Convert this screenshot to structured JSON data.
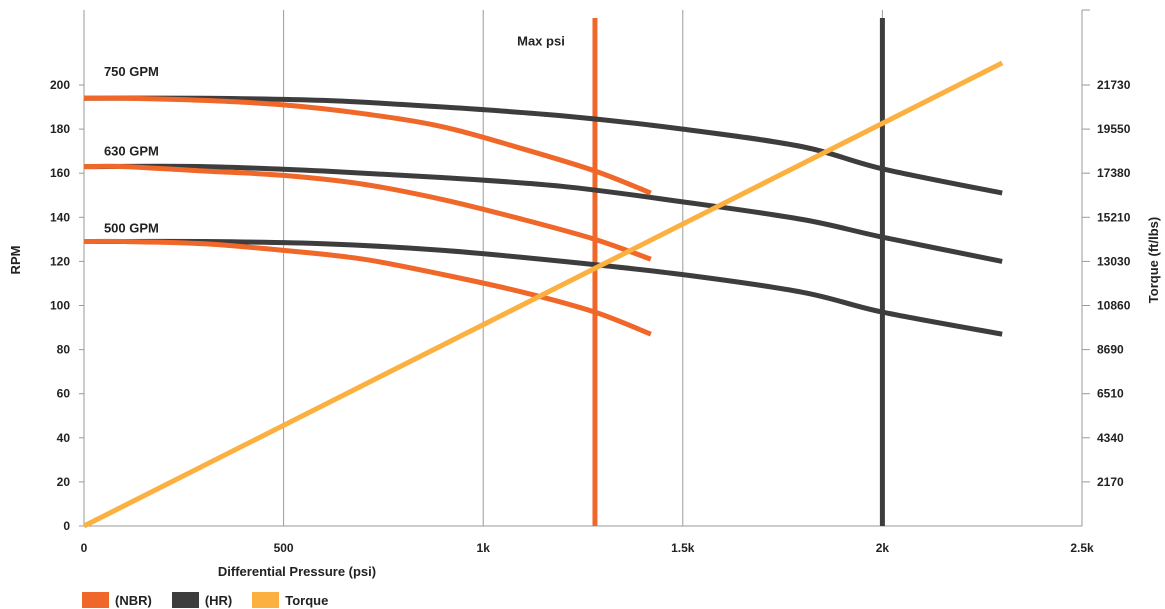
{
  "chart_data": {
    "type": "line",
    "title": "",
    "xlabel": "Differential Pressure (psi)",
    "ylabel": "RPM",
    "y2label": "Torque (ft/lbs)",
    "xlim": [
      0,
      2500
    ],
    "ylim": [
      0,
      200
    ],
    "y2lim": [
      0,
      21730
    ],
    "x_ticks": [
      0,
      500,
      1000,
      1500,
      2000,
      2500
    ],
    "x_tick_labels": [
      "0",
      "500",
      "1k",
      "1.5k",
      "2k",
      "2.5k"
    ],
    "y_ticks": [
      "0",
      "20",
      "40",
      "60",
      "80",
      "100",
      "120",
      "140",
      "160",
      "180",
      "200"
    ],
    "y2_ticks": [
      "2170",
      "4340",
      "6510",
      "8690",
      "10860",
      "13030",
      "15210",
      "17380",
      "19550",
      "21730"
    ],
    "grid": true,
    "legend_position": "bottom-left",
    "colors": {
      "NBR": "#f0672a",
      "HR": "#3d3d3d",
      "Torque": "#fbb040"
    },
    "legend": [
      {
        "label": "(NBR)",
        "color": "#f0672a"
      },
      {
        "label": "(HR)",
        "color": "#3d3d3d"
      },
      {
        "label": "Torque",
        "color": "#fbb040"
      }
    ],
    "annotations": [
      {
        "text": "750 GPM",
        "x": 50,
        "y": 204
      },
      {
        "text": "630 GPM",
        "x": 50,
        "y": 168
      },
      {
        "text": "500 GPM",
        "x": 50,
        "y": 133
      },
      {
        "text": "Max psi",
        "x": 1085,
        "y": 218
      }
    ],
    "vlines": [
      {
        "name": "Max psi (NBR)",
        "x": 1280,
        "color": "#f0672a"
      },
      {
        "name": "Max psi (HR)",
        "x": 2000,
        "color": "#3d3d3d"
      }
    ],
    "series": [
      {
        "group": "NBR",
        "flow": "750 GPM",
        "x": [
          0,
          100,
          300,
          500,
          700,
          900,
          1100,
          1280,
          1420
        ],
        "y": [
          194,
          194,
          193,
          191,
          187,
          181,
          171,
          161,
          151
        ]
      },
      {
        "group": "NBR",
        "flow": "630 GPM",
        "x": [
          0,
          100,
          300,
          500,
          700,
          900,
          1100,
          1280,
          1420
        ],
        "y": [
          163,
          163,
          161,
          159,
          155,
          148,
          139,
          130,
          121
        ]
      },
      {
        "group": "NBR",
        "flow": "500 GPM",
        "x": [
          0,
          100,
          300,
          500,
          700,
          900,
          1100,
          1280,
          1420
        ],
        "y": [
          129,
          129,
          128,
          125,
          121,
          114,
          106,
          97,
          87
        ]
      },
      {
        "group": "HR",
        "flow": "750 GPM",
        "x": [
          0,
          300,
          600,
          900,
          1200,
          1500,
          1800,
          2000,
          2300
        ],
        "y": [
          194,
          194,
          193,
          190,
          186,
          180,
          172,
          162,
          151
        ]
      },
      {
        "group": "HR",
        "flow": "630 GPM",
        "x": [
          0,
          300,
          600,
          900,
          1200,
          1500,
          1800,
          2000,
          2300
        ],
        "y": [
          163,
          163,
          161,
          158,
          154,
          147,
          139,
          131,
          120
        ]
      },
      {
        "group": "HR",
        "flow": "500 GPM",
        "x": [
          0,
          300,
          600,
          900,
          1200,
          1500,
          1800,
          2000,
          2300
        ],
        "y": [
          129,
          129,
          128,
          125,
          120,
          114,
          106,
          97,
          87
        ]
      },
      {
        "group": "Torque",
        "name": "Torque",
        "x": [
          0,
          2300
        ],
        "y": [
          0,
          210
        ]
      }
    ]
  }
}
